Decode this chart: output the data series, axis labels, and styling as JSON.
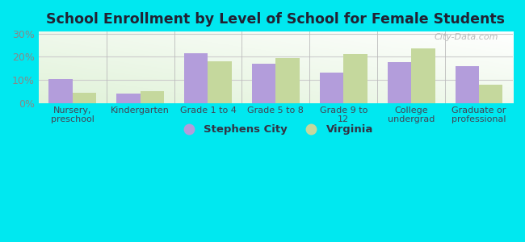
{
  "title": "School Enrollment by Level of School for Female Students",
  "categories": [
    "Nursery,\npreschool",
    "Kindergarten",
    "Grade 1 to 4",
    "Grade 5 to 8",
    "Grade 9 to\n12",
    "College\nundergrad",
    "Graduate or\nprofessional"
  ],
  "stephens_city": [
    10.5,
    4.0,
    21.5,
    17.0,
    13.0,
    17.5,
    16.0
  ],
  "virginia": [
    4.5,
    5.0,
    18.0,
    19.5,
    21.0,
    23.5,
    8.0
  ],
  "stephens_color": "#b39ddb",
  "virginia_color": "#c5d89d",
  "background_outer": "#00e8f0",
  "ytick_color": "#888888",
  "xtick_color": "#444455",
  "title_color": "#222233",
  "yticks": [
    0,
    10,
    20,
    30
  ],
  "ylim": [
    0,
    31
  ],
  "bar_width": 0.35,
  "legend_stephens": "Stephens City",
  "legend_virginia": "Virginia",
  "watermark": "City-Data.com",
  "grid_color": "#cccccc"
}
